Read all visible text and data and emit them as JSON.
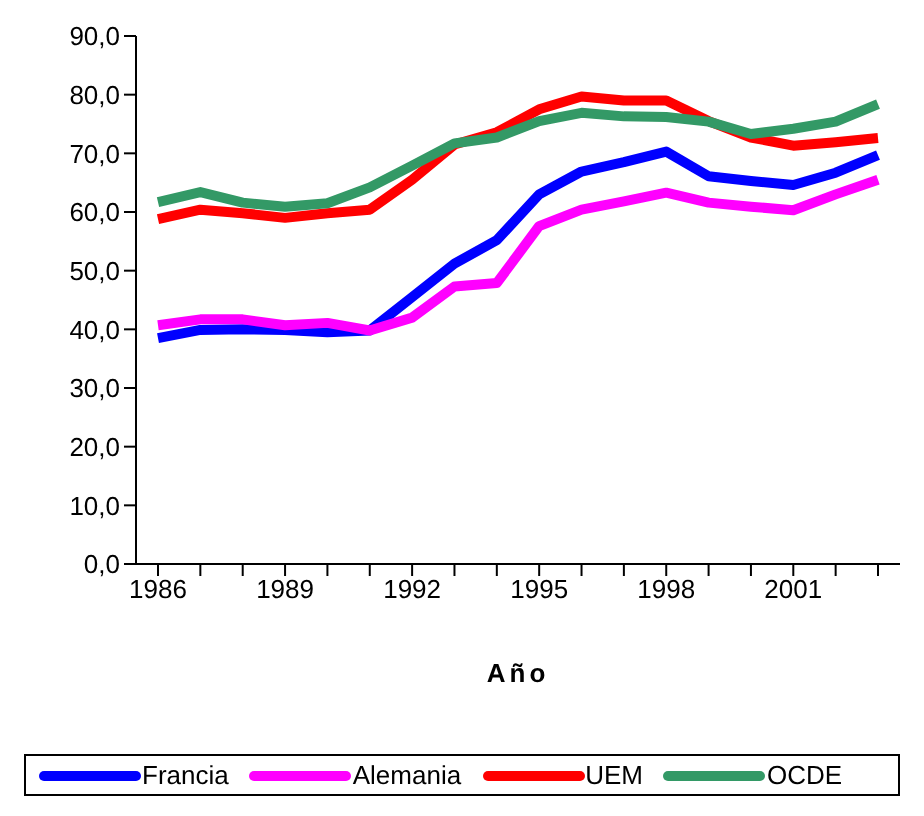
{
  "chart_data": {
    "type": "line",
    "xlabel": "Año",
    "categories": [
      "1986",
      null,
      null,
      "1989",
      null,
      null,
      "1992",
      null,
      null,
      "1995",
      null,
      null,
      "1998",
      null,
      null,
      "2001",
      null,
      null
    ],
    "series": [
      {
        "name": "Francia",
        "color": "#0000ff",
        "values": [
          38.5,
          39.9,
          40.0,
          39.9,
          39.5,
          39.8,
          45.5,
          51.2,
          55.2,
          63.0,
          66.9,
          68.5,
          70.3,
          66.1,
          65.3,
          64.6,
          66.7,
          69.7
        ]
      },
      {
        "name": "Alemania",
        "color": "#ff00ff",
        "values": [
          40.7,
          41.7,
          41.7,
          40.7,
          41.1,
          39.8,
          42.0,
          47.3,
          47.9,
          57.6,
          60.4,
          61.8,
          63.3,
          61.6,
          60.9,
          60.3,
          63.0,
          65.5
        ]
      },
      {
        "name": "UEM",
        "color": "#ff0000",
        "values": [
          58.8,
          60.4,
          59.8,
          59.0,
          59.8,
          60.4,
          65.5,
          71.5,
          73.6,
          77.5,
          79.7,
          79.0,
          79.0,
          75.5,
          72.7,
          71.3,
          71.9,
          72.6
        ]
      },
      {
        "name": "OCDE",
        "color": "#339966",
        "values": [
          61.7,
          63.4,
          61.6,
          60.9,
          61.5,
          64.2,
          67.9,
          71.7,
          72.7,
          75.5,
          76.9,
          76.3,
          76.2,
          75.4,
          73.3,
          74.2,
          75.4,
          78.4
        ]
      }
    ],
    "ylim": [
      0,
      90
    ],
    "yticks": [
      {
        "value": 0,
        "label": "0,0"
      },
      {
        "value": 10,
        "label": "10,0"
      },
      {
        "value": 20,
        "label": "20,0"
      },
      {
        "value": 30,
        "label": "30,0"
      },
      {
        "value": 40,
        "label": "40,0"
      },
      {
        "value": 50,
        "label": "50,0"
      },
      {
        "value": 60,
        "label": "60,0"
      },
      {
        "value": 70,
        "label": "70,0"
      },
      {
        "value": 80,
        "label": "80,0"
      },
      {
        "value": 90,
        "label": "90,0"
      }
    ],
    "grid": false,
    "legend": "bottom",
    "marker": "none",
    "line_style": "solid"
  }
}
